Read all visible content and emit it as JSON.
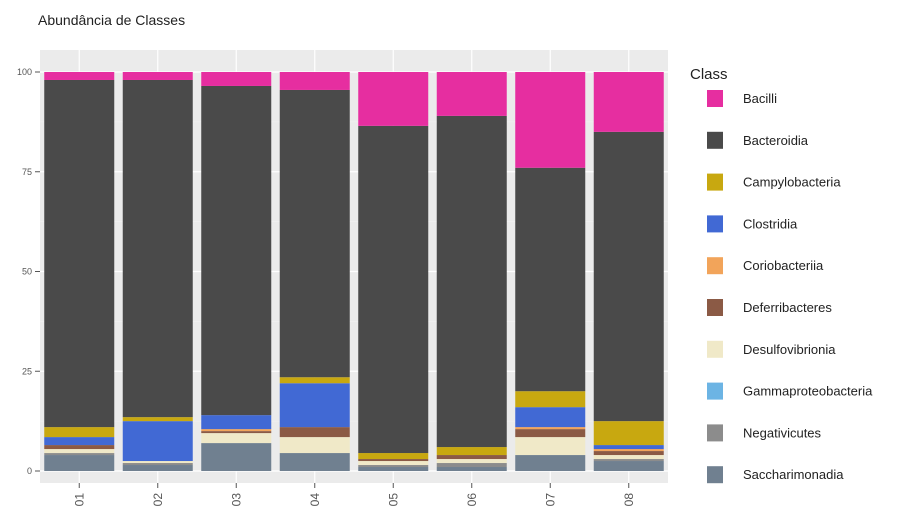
{
  "chart_data": {
    "type": "bar",
    "stacked": true,
    "title": "Abundância de Classes",
    "xlabel": "",
    "ylabel": "",
    "ylim": [
      0,
      100
    ],
    "yticks": [
      "0",
      "25",
      "50",
      "75",
      "100"
    ],
    "categories": [
      "01",
      "02",
      "03",
      "04",
      "05",
      "06",
      "07",
      "08"
    ],
    "legend_title": "Class",
    "legend_position": "right",
    "grid": true,
    "series": [
      {
        "name": "Saccharimonadia",
        "color": "#708090",
        "values": [
          4,
          1.5,
          7,
          4.5,
          1,
          1,
          4,
          2.5
        ]
      },
      {
        "name": "Negativicutes",
        "color": "#8c8c8c",
        "values": [
          0.5,
          0.5,
          0,
          0,
          0.5,
          1,
          0,
          0.5
        ]
      },
      {
        "name": "Gammaproteobacteria",
        "color": "#6cb4e4",
        "values": [
          0,
          0,
          0,
          0,
          0,
          0,
          0,
          0
        ]
      },
      {
        "name": "Desulfovibrionia",
        "color": "#f0e9c8",
        "values": [
          1,
          0.5,
          2.5,
          4,
          1,
          1,
          4.5,
          1
        ]
      },
      {
        "name": "Deferribacteres",
        "color": "#8b5a45",
        "values": [
          1,
          0,
          0.5,
          2.5,
          0.5,
          1,
          2,
          1
        ]
      },
      {
        "name": "Coriobacteriia",
        "color": "#f2a45a",
        "values": [
          0,
          0,
          0.5,
          0,
          0,
          0,
          0.5,
          0.5
        ]
      },
      {
        "name": "Clostridia",
        "color": "#4169d4",
        "values": [
          2,
          10,
          3.5,
          11,
          0,
          0,
          5,
          1
        ]
      },
      {
        "name": "Campylobacteria",
        "color": "#c8a810",
        "values": [
          2.5,
          1,
          0,
          1.5,
          1.5,
          2,
          4,
          6
        ]
      },
      {
        "name": "Bacteroidia",
        "color": "#4a4a4a",
        "values": [
          87,
          84.5,
          82.5,
          72,
          82,
          83,
          56,
          72.5
        ]
      },
      {
        "name": "Bacilli",
        "color": "#e62ea0",
        "values": [
          2,
          2,
          3.5,
          4.5,
          13.5,
          11,
          24,
          15
        ]
      }
    ]
  }
}
